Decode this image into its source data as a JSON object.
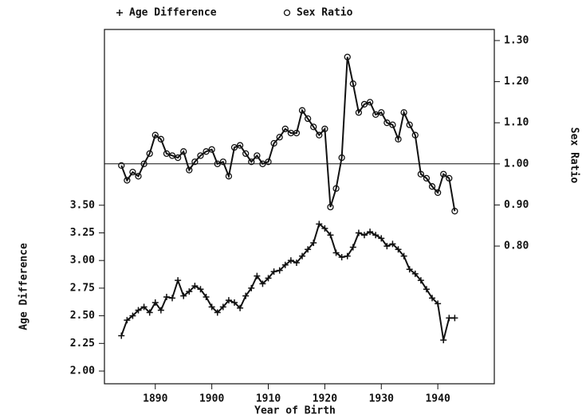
{
  "chart_data": {
    "type": "line",
    "title_legend_position": "top",
    "legend": "top",
    "x_label": "Year of Birth",
    "y_label": "Age Difference",
    "y2_label": "Sex Ratio",
    "x": [
      1884,
      1885,
      1886,
      1887,
      1888,
      1889,
      1890,
      1891,
      1892,
      1893,
      1894,
      1895,
      1896,
      1897,
      1898,
      1899,
      1900,
      1901,
      1902,
      1903,
      1904,
      1905,
      1906,
      1907,
      1908,
      1909,
      1910,
      1911,
      1912,
      1913,
      1914,
      1915,
      1916,
      1917,
      1918,
      1919,
      1920,
      1921,
      1922,
      1923,
      1924,
      1925,
      1926,
      1927,
      1928,
      1929,
      1930,
      1931,
      1932,
      1933,
      1934,
      1935,
      1936,
      1937,
      1938,
      1939,
      1940,
      1941,
      1942,
      1943
    ],
    "series": [
      {
        "name": "Age Difference",
        "color": "#111111",
        "marker": "plus",
        "axis": "y",
        "values": [
          2.32,
          2.46,
          2.5,
          2.55,
          2.58,
          2.53,
          2.62,
          2.55,
          2.67,
          2.66,
          2.82,
          2.68,
          2.72,
          2.77,
          2.74,
          2.67,
          2.58,
          2.53,
          2.58,
          2.64,
          2.62,
          2.57,
          2.68,
          2.75,
          2.86,
          2.79,
          2.84,
          2.9,
          2.91,
          2.96,
          3.0,
          2.98,
          3.04,
          3.1,
          3.16,
          3.33,
          3.29,
          3.23,
          3.07,
          3.03,
          3.04,
          3.12,
          3.25,
          3.23,
          3.26,
          3.23,
          3.2,
          3.13,
          3.15,
          3.1,
          3.04,
          2.92,
          2.88,
          2.82,
          2.74,
          2.66,
          2.61,
          2.28,
          2.48,
          2.48
        ]
      },
      {
        "name": "Sex Ratio",
        "color": "#111111",
        "marker": "circle",
        "axis": "y2",
        "values": [
          0.996,
          0.96,
          0.98,
          0.97,
          1.0,
          1.025,
          1.07,
          1.06,
          1.025,
          1.02,
          1.015,
          1.03,
          0.985,
          1.005,
          1.02,
          1.03,
          1.035,
          1.0,
          1.005,
          0.97,
          1.04,
          1.045,
          1.025,
          1.005,
          1.02,
          1.0,
          1.005,
          1.05,
          1.065,
          1.085,
          1.075,
          1.075,
          1.13,
          1.11,
          1.09,
          1.07,
          1.085,
          0.895,
          0.94,
          1.015,
          1.26,
          1.195,
          1.125,
          1.145,
          1.15,
          1.12,
          1.125,
          1.1,
          1.095,
          1.06,
          1.125,
          1.095,
          1.07,
          0.975,
          0.965,
          0.945,
          0.93,
          0.975,
          0.965,
          0.885
        ]
      }
    ],
    "reference_line": {
      "value": 1.0,
      "axis": "y2"
    },
    "xlim": [
      1881,
      1950
    ],
    "ylim": [
      1.885,
      5.09
    ],
    "y2lim": [
      0.465,
      1.327
    ],
    "xticks": [
      1890,
      1900,
      1910,
      1920,
      1930,
      1940
    ],
    "yticks": [
      {
        "value": 2,
        "label": "2.00"
      },
      {
        "value": 2.25,
        "label": "2.25"
      },
      {
        "value": 2.5,
        "label": "2.50"
      },
      {
        "value": 2.75,
        "label": "2.75"
      },
      {
        "value": 3,
        "label": "3.00"
      },
      {
        "value": 3.25,
        "label": "3.25"
      },
      {
        "value": 3.5,
        "label": "3.50"
      }
    ],
    "y2ticks": [
      {
        "value": 0.8,
        "label": "0.80"
      },
      {
        "value": 0.9,
        "label": "0.90"
      },
      {
        "value": 1,
        "label": "1.00"
      },
      {
        "value": 1.1,
        "label": "1.10"
      },
      {
        "value": 1.2,
        "label": "1.20"
      },
      {
        "value": 1.3,
        "label": "1.30"
      }
    ]
  }
}
